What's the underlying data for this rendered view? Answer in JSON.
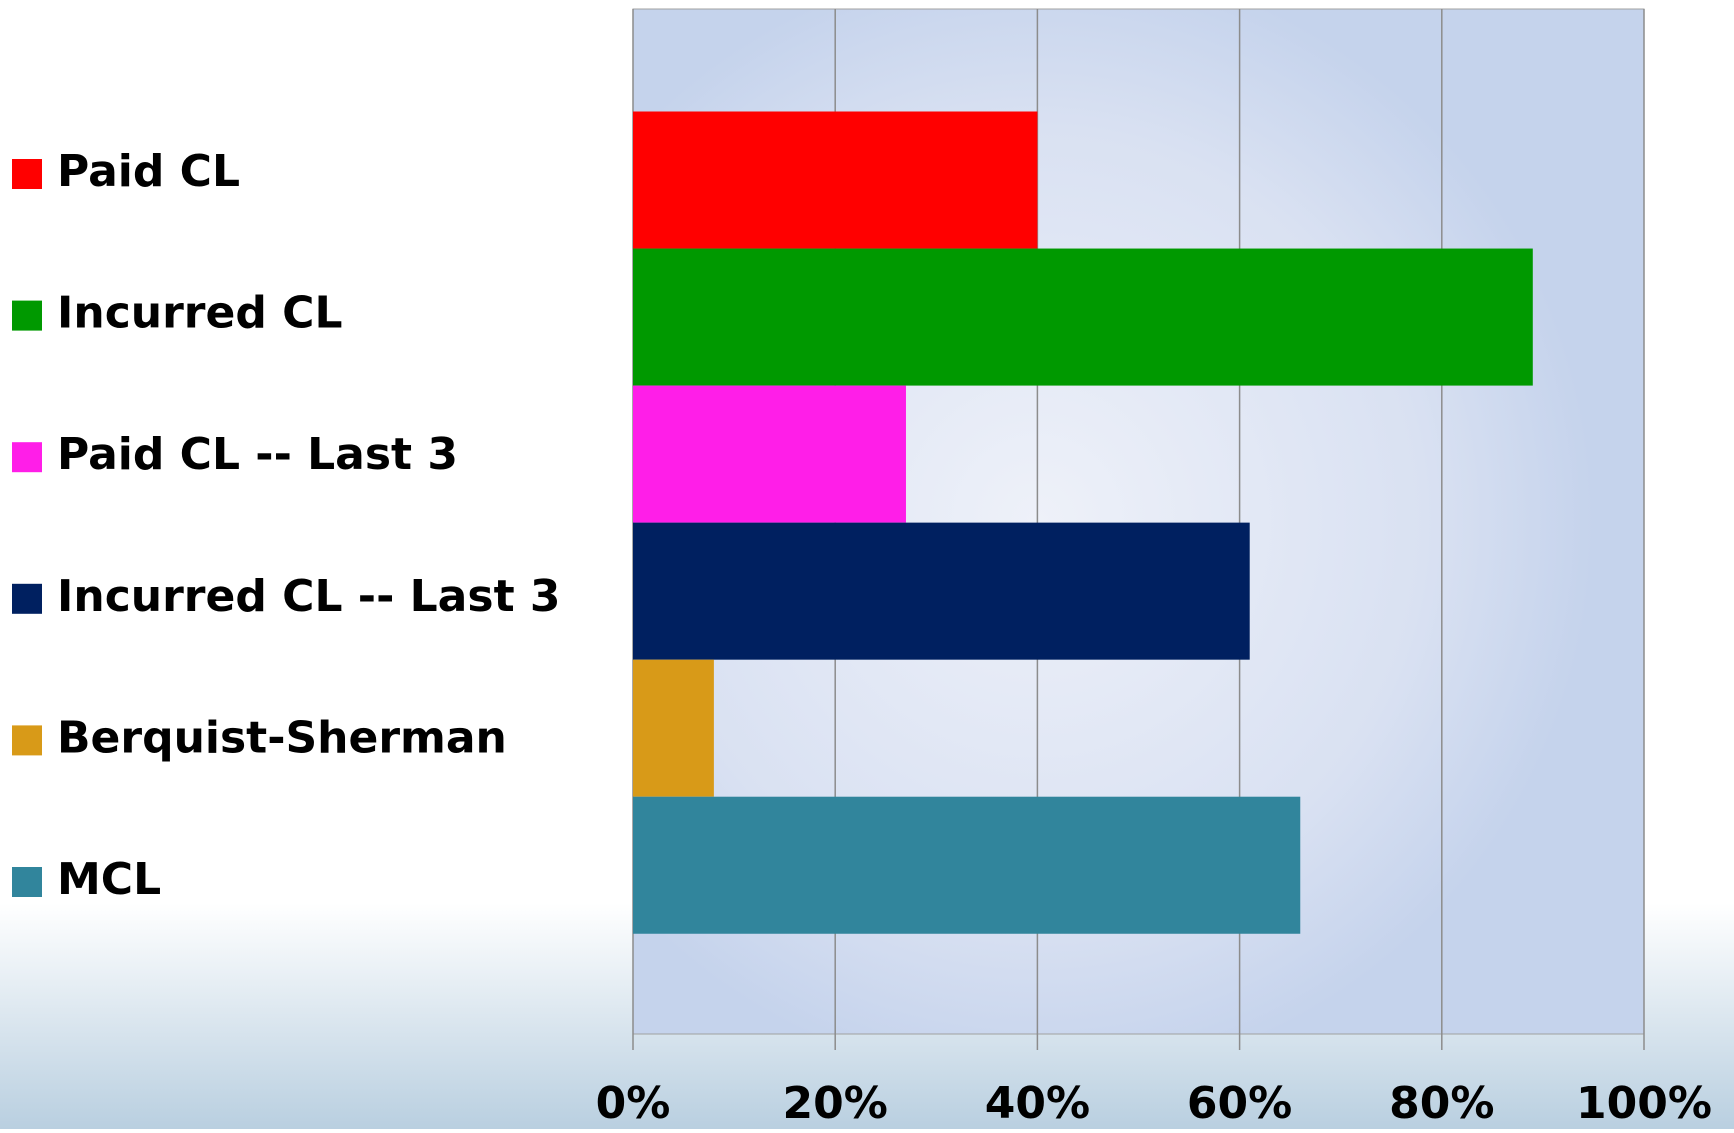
{
  "chart_data": {
    "type": "bar",
    "orientation": "horizontal",
    "categories": [
      "Paid CL",
      "Incurred CL",
      "Paid CL -- Last 3",
      "Incurred CL -- Last 3",
      "Berquist-Sherman",
      "MCL"
    ],
    "values": [
      40,
      89,
      27,
      61,
      8,
      66
    ],
    "colors": [
      "#ff0000",
      "#009900",
      "#ff1ee8",
      "#002060",
      "#d89a18",
      "#31859c"
    ],
    "xlim": [
      0,
      100
    ],
    "xticks": [
      {
        "value": 0,
        "label": "0%"
      },
      {
        "value": 20,
        "label": "20%"
      },
      {
        "value": 40,
        "label": "40%"
      },
      {
        "value": 60,
        "label": "60%"
      },
      {
        "value": 80,
        "label": "80%"
      },
      {
        "value": 100,
        "label": "100%"
      }
    ],
    "grid": true,
    "legend": "left"
  }
}
